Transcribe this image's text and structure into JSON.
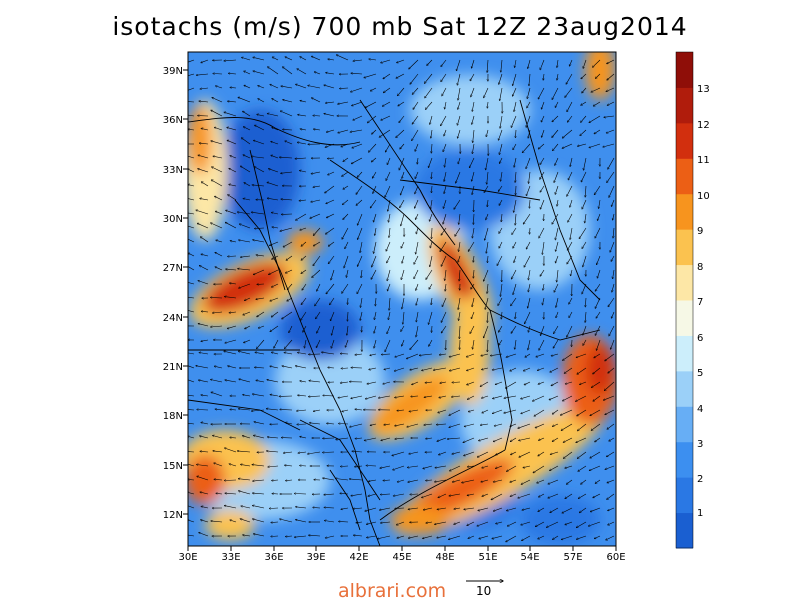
{
  "title": "isotachs (m/s) 700 mb Sat 12Z 23aug2014",
  "map": {
    "lat_labels": [
      "39N",
      "36N",
      "33N",
      "30N",
      "27N",
      "24N",
      "21N",
      "18N",
      "15N",
      "12N"
    ],
    "lon_labels": [
      "30E",
      "33E",
      "36E",
      "39E",
      "42E",
      "45E",
      "48E",
      "51E",
      "54E",
      "57E",
      "60E"
    ],
    "lon_range": [
      30,
      60
    ],
    "lat_range": [
      10,
      40
    ]
  },
  "colorbar": {
    "labels": [
      "1",
      "2",
      "3",
      "4",
      "5",
      "6",
      "7",
      "8",
      "9",
      "10",
      "11",
      "12",
      "13"
    ],
    "colors": [
      "#1a5fd1",
      "#2a78e4",
      "#3c8ff0",
      "#67aef5",
      "#9bd0f8",
      "#cceefb",
      "#f6f8e6",
      "#fde7a6",
      "#fbc24f",
      "#f7941e",
      "#ec5f15",
      "#d22f0e",
      "#b01c0c",
      "#8f0e08"
    ]
  },
  "footer": {
    "brand": "albrari.com",
    "ref_vector_label": "10"
  }
}
